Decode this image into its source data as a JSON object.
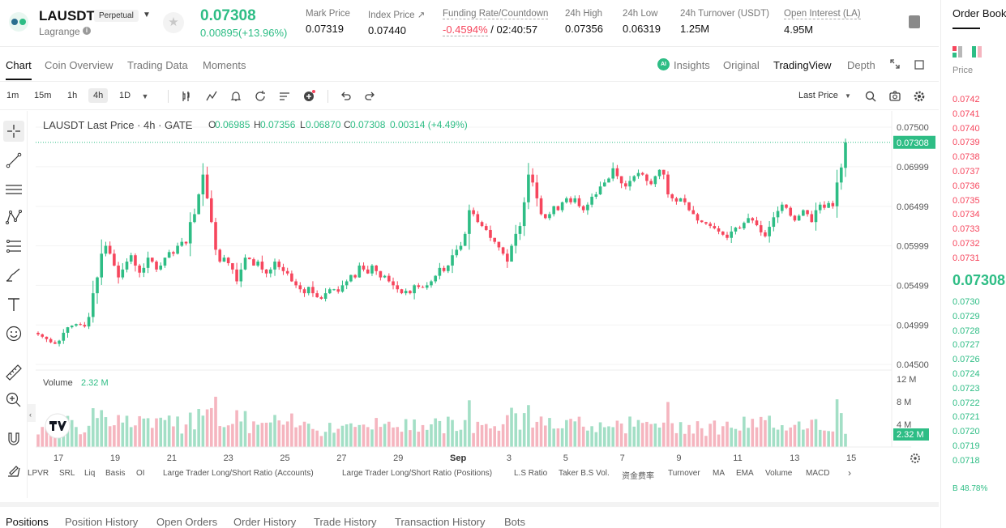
{
  "header": {
    "symbol": "LAUSDT",
    "badge": "Perpetual",
    "subtitle": "Lagrange",
    "last_price": "0.07308",
    "change": "0.00895(+13.96%)",
    "stats": [
      {
        "label": "Mark Price",
        "value": "0.07319"
      },
      {
        "label": "Index Price ↗",
        "value": "0.07440"
      },
      {
        "label": "Funding Rate/Countdown",
        "value_neg": "-0.4594%",
        "value_rest": " / 02:40:57"
      },
      {
        "label": "24h High",
        "value": "0.07356"
      },
      {
        "label": "24h Low",
        "value": "0.06319"
      },
      {
        "label": "24h Turnover (USDT)",
        "value": "1.25M"
      },
      {
        "label": "Open Interest (LA)",
        "value": "4.95M"
      }
    ]
  },
  "tabs": [
    "Chart",
    "Coin Overview",
    "Trading Data",
    "Moments"
  ],
  "view_tabs": {
    "insights": "Insights",
    "original": "Original",
    "tradingview": "TradingView",
    "depth": "Depth",
    "ai_badge": "AI"
  },
  "toolbar": {
    "intervals": [
      "1m",
      "15m",
      "1h",
      "4h",
      "1D"
    ],
    "active_interval": "4h",
    "price_type": "Last Price"
  },
  "chart_legend": {
    "title": "LAUSDT Last Price · 4h · GATE",
    "O": "0.06985",
    "H": "0.07356",
    "L": "0.06870",
    "C": "0.07308",
    "change": "0.00314 (+4.49%)",
    "volume_label": "Volume",
    "volume_value": "2.32 M"
  },
  "chart_data": {
    "type": "candlestick",
    "price_axis_ticks": [
      "0.07500",
      "0.06999",
      "0.06499",
      "0.05999",
      "0.05499",
      "0.04999",
      "0.04500"
    ],
    "current_price_tag": "0.07308",
    "volume_axis_ticks": [
      "12 M",
      "8 M",
      "4 M"
    ],
    "current_volume_tag": "2.32 M",
    "x_ticks": [
      "17",
      "19",
      "21",
      "23",
      "25",
      "27",
      "29",
      "Sep",
      "3",
      "5",
      "7",
      "9",
      "11",
      "13",
      "15"
    ],
    "last_candle": {
      "open": 0.06985,
      "high": 0.07356,
      "low": 0.0687,
      "close": 0.07308,
      "volume": 2.32
    },
    "closes": [
      0.0488,
      0.0485,
      0.0482,
      0.0478,
      0.0476,
      0.048,
      0.049,
      0.0497,
      0.0499,
      0.0501,
      0.05,
      0.0498,
      0.051,
      0.054,
      0.056,
      0.059,
      0.06,
      0.059,
      0.0575,
      0.056,
      0.057,
      0.058,
      0.0588,
      0.0575,
      0.0566,
      0.0572,
      0.0585,
      0.058,
      0.057,
      0.0575,
      0.0585,
      0.0592,
      0.059,
      0.06,
      0.0605,
      0.0603,
      0.063,
      0.064,
      0.0665,
      0.069,
      0.066,
      0.063,
      0.0595,
      0.058,
      0.0585,
      0.0578,
      0.057,
      0.0555,
      0.057,
      0.0585,
      0.0583,
      0.0575,
      0.058,
      0.057,
      0.0565,
      0.057,
      0.058,
      0.0573,
      0.0568,
      0.0565,
      0.0555,
      0.055,
      0.0545,
      0.054,
      0.0548,
      0.054,
      0.0535,
      0.0533,
      0.054,
      0.0545,
      0.0545,
      0.0542,
      0.055,
      0.0555,
      0.0563,
      0.056,
      0.0575,
      0.057,
      0.0565,
      0.0575,
      0.0568,
      0.056,
      0.0562,
      0.0555,
      0.055,
      0.0545,
      0.054,
      0.0543,
      0.054,
      0.055,
      0.0548,
      0.0547,
      0.055,
      0.0555,
      0.0562,
      0.0572,
      0.0568,
      0.0575,
      0.0588,
      0.0595,
      0.06,
      0.0615,
      0.0645,
      0.064,
      0.063,
      0.0625,
      0.062,
      0.061,
      0.0605,
      0.0598,
      0.059,
      0.058,
      0.06,
      0.0615,
      0.0625,
      0.0655,
      0.069,
      0.068,
      0.066,
      0.064,
      0.0635,
      0.064,
      0.065,
      0.0645,
      0.0655,
      0.066,
      0.0655,
      0.066,
      0.065,
      0.0645,
      0.0652,
      0.0662,
      0.0665,
      0.0675,
      0.068,
      0.0685,
      0.0698,
      0.0688,
      0.0679,
      0.0675,
      0.0682,
      0.0688,
      0.0692,
      0.069,
      0.0682,
      0.0678,
      0.0688,
      0.0696,
      0.069,
      0.0665,
      0.066,
      0.0656,
      0.066,
      0.0655,
      0.0645,
      0.064,
      0.0632,
      0.063,
      0.0628,
      0.0625,
      0.0622,
      0.0618,
      0.0614,
      0.061,
      0.0618,
      0.0623,
      0.0622,
      0.0629,
      0.0635,
      0.0632,
      0.0626,
      0.0617,
      0.0612,
      0.0624,
      0.0636,
      0.0644,
      0.0652,
      0.0648,
      0.0638,
      0.0632,
      0.0638,
      0.0645,
      0.064,
      0.063,
      0.0645,
      0.0652,
      0.0648,
      0.0654,
      0.065,
      0.068,
      0.0699,
      0.0731
    ]
  },
  "indicators": [
    "LPVR",
    "SRL",
    "Liq",
    "Basis",
    "OI",
    "Large Trader Long/Short Ratio (Accounts)",
    "Large Trader Long/Short Ratio (Positions)",
    "L.S Ratio",
    "Taker B.S Vol.",
    "资金费率",
    "Turnover",
    "MA",
    "EMA",
    "Volume",
    "MACD"
  ],
  "bottom_tabs": [
    "Positions",
    "Position History",
    "Open Orders",
    "Order History",
    "Trade History",
    "Transaction History",
    "Bots"
  ],
  "orderbook": {
    "title": "Order Book",
    "price_label": "Price",
    "asks": [
      "0.0742",
      "0.0741",
      "0.0740",
      "0.0739",
      "0.0738",
      "0.0737",
      "0.0736",
      "0.0735",
      "0.0734",
      "0.0733",
      "0.0732",
      "0.0731"
    ],
    "mid_price": "0.07308",
    "bids": [
      "0.0730",
      "0.0729",
      "0.0728",
      "0.0727",
      "0.0726",
      "0.0724",
      "0.0723",
      "0.0722",
      "0.0721",
      "0.0720",
      "0.0719",
      "0.0718"
    ],
    "buy_ratio": "B 48.78%"
  },
  "colors": {
    "up": "#2ebd85",
    "down": "#f6465d",
    "up_volume": "#a3dfc6",
    "down_volume": "#f5b5bf"
  }
}
